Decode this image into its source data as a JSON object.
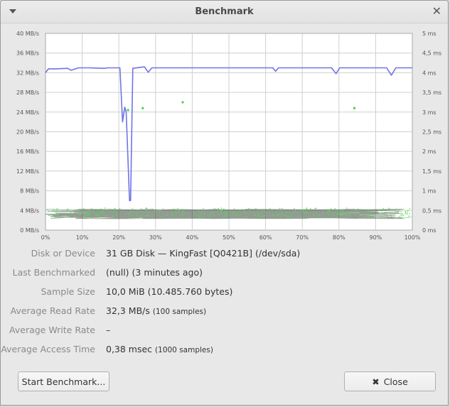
{
  "window": {
    "title": "Benchmark"
  },
  "chart_data": {
    "type": "line",
    "y_left_ticks": [
      "0 MB/s",
      "4 MB/s",
      "8 MB/s",
      "12 MB/s",
      "16 MB/s",
      "20 MB/s",
      "24 MB/s",
      "28 MB/s",
      "32 MB/s",
      "36 MB/s",
      "40 MB/s"
    ],
    "y_right_ticks": [
      "0 ms",
      "0,5 ms",
      "1 ms",
      "1,5 ms",
      "2 ms",
      "2,5 ms",
      "3 ms",
      "3,5 ms",
      "4 ms",
      "4,5 ms",
      "5 ms"
    ],
    "x_ticks": [
      "0%",
      "10%",
      "20%",
      "30%",
      "40%",
      "50%",
      "60%",
      "70%",
      "80%",
      "90%",
      "100%"
    ],
    "xlim": [
      0,
      100
    ],
    "ylim_left": [
      0,
      40
    ],
    "ylim_right": [
      0,
      5
    ],
    "grid": true,
    "series": [
      {
        "color": "#6f74e6",
        "x": [
          0,
          0.8,
          3,
          6,
          7,
          9,
          12,
          16,
          17,
          20,
          20.3,
          21,
          21.6,
          22,
          22.9,
          23.2,
          23.8,
          27,
          28,
          29,
          33,
          40,
          50,
          60,
          62,
          62.7,
          63.5,
          70,
          75,
          78,
          79.2,
          80.2,
          85,
          89,
          90,
          92,
          93,
          94.3,
          95.5,
          97,
          100
        ],
        "y": [
          32,
          32.8,
          32.8,
          32.9,
          32.5,
          33,
          33,
          32.9,
          33,
          33,
          33,
          22,
          25,
          24,
          6,
          6,
          32.9,
          33.2,
          32.1,
          33,
          33,
          33,
          33,
          33,
          33,
          32.3,
          33,
          33,
          33,
          33,
          31.8,
          33,
          33,
          33,
          33,
          33,
          33,
          31.5,
          33,
          33,
          33
        ]
      },
      {
        "color": "#3fd63f",
        "x": [
          22.5,
          26.5,
          37.4,
          84.2
        ],
        "y": [
          3.05,
          3.1,
          3.25,
          3.1
        ]
      }
    ]
  },
  "info": {
    "disk_label": "Disk or Device",
    "disk_value": "31 GB Disk — KingFast [Q0421B] (/dev/sda)",
    "last_label": "Last Benchmarked",
    "last_value": "(null) (3 minutes ago)",
    "sample_label": "Sample Size",
    "sample_value": "10,0 MiB (10.485.760 bytes)",
    "read_label": "Average Read Rate",
    "read_value": "32,3 MB/s",
    "read_samples": "(100 samples)",
    "write_label": "Average Write Rate",
    "write_value": "–",
    "access_label": "Average Access Time",
    "access_value": "0,38 msec",
    "access_samples": "(1000 samples)"
  },
  "buttons": {
    "start_label": "Start Benchmark...",
    "close_label": "Close",
    "close_glyph": "✖"
  }
}
